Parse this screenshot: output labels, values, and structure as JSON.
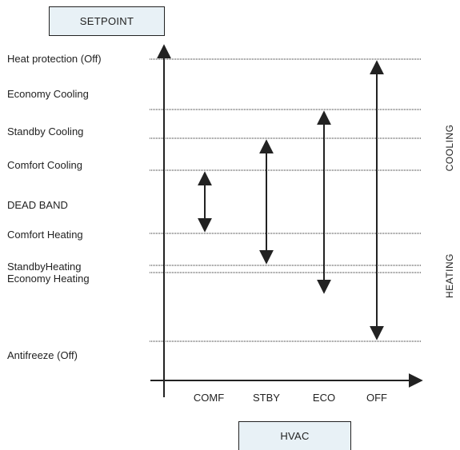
{
  "title_box": "SETPOINT",
  "x_box": "HVAC",
  "levels": [
    "Heat protection (Off)",
    "Economy Cooling",
    "Standby Cooling",
    "Comfort Cooling",
    "DEAD BAND",
    "Comfort Heating",
    "StandbyHeating",
    "Economy Heating",
    "Antifreeze (Off)"
  ],
  "modes": [
    "COMF",
    "STBY",
    "ECO",
    "OFF"
  ],
  "sides": {
    "cooling": "COOLING",
    "heating": "HEATING"
  },
  "colors": {
    "box_fill": "#e8f1f6",
    "line": "#222222"
  }
}
